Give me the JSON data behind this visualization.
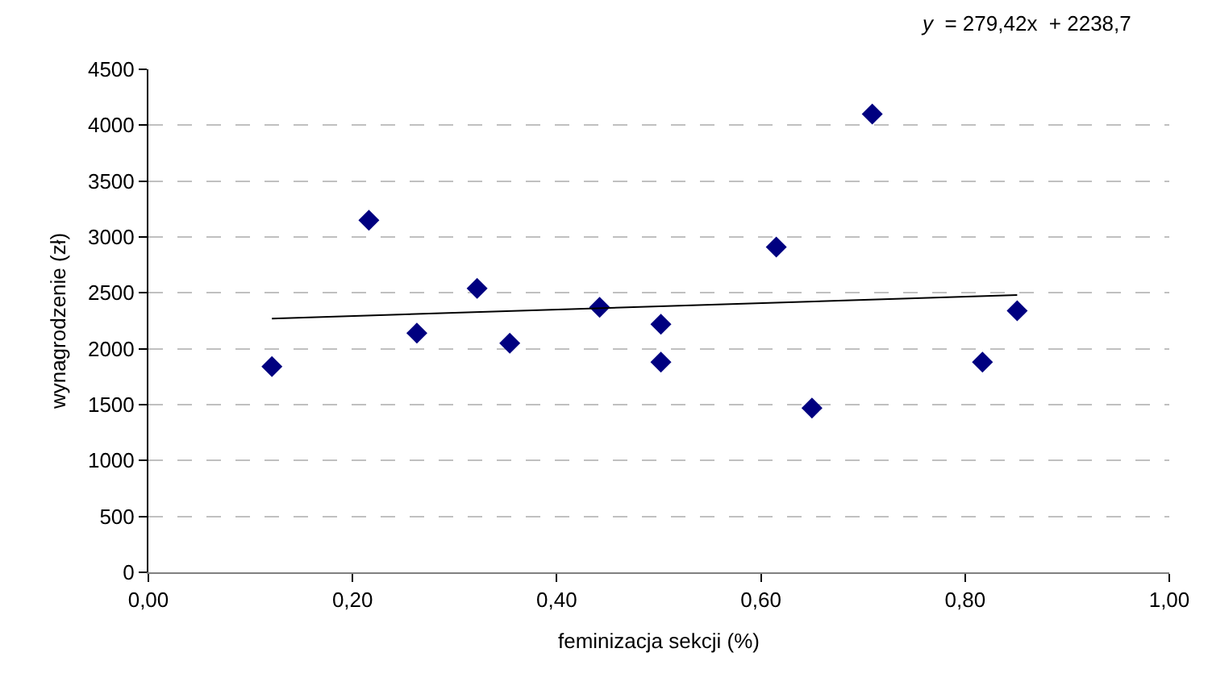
{
  "chart_data": {
    "type": "scatter",
    "xlabel": "feminizacja sekcji (%)",
    "ylabel": "wynagrodzenie (zł)",
    "annotations": [
      "y  = 279,42x  + 2238,7"
    ],
    "marker": "diamond",
    "grid": "y",
    "xlim": [
      0,
      1
    ],
    "xticks": [
      {
        "value": 0,
        "label": "0,00"
      },
      {
        "value": 0.2,
        "label": "0,20"
      },
      {
        "value": 0.4,
        "label": "0,40"
      },
      {
        "value": 0.6,
        "label": "0,60"
      },
      {
        "value": 0.8,
        "label": "0,80"
      },
      {
        "value": 1,
        "label": "1,00"
      }
    ],
    "ylim": [
      0,
      4500
    ],
    "yticks": [
      0,
      500,
      1000,
      1500,
      2000,
      2500,
      3000,
      3500,
      4000,
      4500
    ],
    "series": [
      {
        "color": "#000080",
        "x": [
          0.121,
          0.216,
          0.263,
          0.322,
          0.354,
          0.442,
          0.502,
          0.502,
          0.615,
          0.65,
          0.709,
          0.817,
          0.851
        ],
        "values": [
          1840,
          3150,
          2140,
          2540,
          2050,
          2370,
          2220,
          1880,
          2910,
          1470,
          4100,
          1880,
          2340
        ]
      },
      {
        "type": "line",
        "color": "#000000",
        "marker": "none",
        "line_style": "solid",
        "x": [
          0.121,
          0.851
        ],
        "values": [
          2270,
          2480
        ]
      }
    ]
  }
}
